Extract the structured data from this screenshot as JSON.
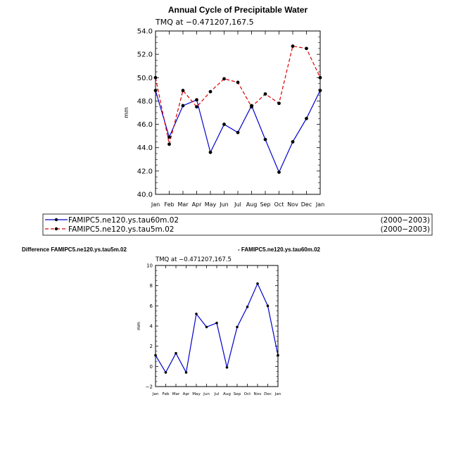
{
  "chart_data": [
    {
      "type": "line",
      "title": "Annual Cycle of Precipitable Water",
      "subtitle": "TMQ at −0.471207,167.5",
      "ylabel": "mm",
      "xlabel": "",
      "ylim": [
        40,
        54
      ],
      "yticks": [
        "40.0",
        "42.0",
        "44.0",
        "46.0",
        "48.0",
        "50.0",
        "52.0",
        "54.0"
      ],
      "categories": [
        "Jan",
        "Feb",
        "Mar",
        "Apr",
        "May",
        "Jun",
        "Jul",
        "Aug",
        "Sep",
        "Oct",
        "Nov",
        "Dec",
        "Jan"
      ],
      "series": [
        {
          "name": "FAMIPC5.ne120.ys.tau60m.02",
          "period": "(2000−2003)",
          "color": "#0000cc",
          "dash": "solid",
          "values": [
            48.9,
            44.9,
            47.6,
            48.1,
            43.6,
            46.0,
            45.3,
            47.6,
            44.7,
            41.9,
            44.5,
            46.5,
            48.9
          ]
        },
        {
          "name": "FAMIPC5.ne120.ys.tau5m.02",
          "period": "(2000−2003)",
          "color": "#dd0000",
          "dash": "dashed",
          "values": [
            50.0,
            44.3,
            48.9,
            47.5,
            48.8,
            49.9,
            49.6,
            47.5,
            48.6,
            47.8,
            52.7,
            52.5,
            50.0
          ]
        }
      ],
      "grid": false,
      "legend": "bottom"
    },
    {
      "type": "line",
      "title_left": "Difference FAMIPC5.ne120.ys.tau5m.02",
      "title_right": "- FAMIPC5.ne120.ys.tau60m.02",
      "subtitle": "TMQ at −0.471207,167.5",
      "ylabel": "mm",
      "xlabel": "",
      "ylim": [
        -2,
        10
      ],
      "yticks": [
        "−2",
        "0",
        "2",
        "4",
        "6",
        "8",
        "10"
      ],
      "categories": [
        "Jan",
        "Feb",
        "Mar",
        "Apr",
        "May",
        "Jun",
        "Jul",
        "Aug",
        "Sep",
        "Oct",
        "Nov",
        "Dec",
        "Jan"
      ],
      "series": [
        {
          "color": "#0000cc",
          "values": [
            1.1,
            -0.6,
            1.3,
            -0.6,
            5.2,
            3.9,
            4.3,
            -0.1,
            3.9,
            5.9,
            8.2,
            6.0,
            1.1
          ]
        }
      ],
      "grid": false,
      "legend": "none"
    }
  ]
}
